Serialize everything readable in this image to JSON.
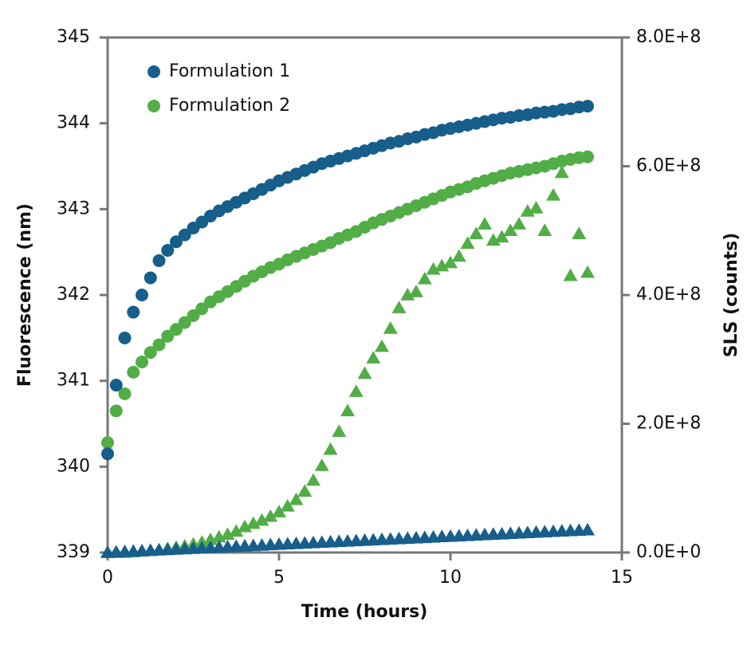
{
  "chart_data": {
    "type": "scatter",
    "x_label": "Time (hours)",
    "y_label": "Fluorescence (nm)",
    "y2_label": "SLS (counts)",
    "x": [
      0,
      0.25,
      0.5,
      0.75,
      1,
      1.25,
      1.5,
      1.75,
      2,
      2.25,
      2.5,
      2.75,
      3,
      3.25,
      3.5,
      3.75,
      4,
      4.25,
      4.5,
      4.75,
      5,
      5.25,
      5.5,
      5.75,
      6,
      6.25,
      6.5,
      6.75,
      7,
      7.25,
      7.5,
      7.75,
      8,
      8.25,
      8.5,
      8.75,
      9,
      9.25,
      9.5,
      9.75,
      10,
      10.25,
      10.5,
      10.75,
      11,
      11.25,
      11.5,
      11.75,
      12,
      12.25,
      12.5,
      12.75,
      13,
      13.25,
      13.5,
      13.75,
      14
    ],
    "xlim": [
      0,
      15
    ],
    "xticks": [
      0,
      5,
      10,
      15
    ],
    "ylim": [
      339,
      345
    ],
    "yticks": [
      339,
      340,
      341,
      342,
      343,
      344,
      345
    ],
    "y2lim": [
      0,
      800000000
    ],
    "y2ticks": [
      {
        "value": 0,
        "label": "0.0E+0"
      },
      {
        "value": 200000000,
        "label": "2.0E+8"
      },
      {
        "value": 400000000,
        "label": "4.0E+8"
      },
      {
        "value": 600000000,
        "label": "6.0E+8"
      },
      {
        "value": 800000000,
        "label": "8.0E+8"
      }
    ],
    "legend": "upper left",
    "series": [
      {
        "name": "Formulation 2",
        "color": "#52ad47",
        "marker": "circle",
        "values": [
          340.28,
          340.65,
          340.85,
          341.1,
          341.22,
          341.33,
          341.42,
          341.52,
          341.6,
          341.68,
          341.76,
          341.84,
          341.92,
          341.98,
          342.04,
          342.1,
          342.16,
          342.22,
          342.27,
          342.32,
          342.36,
          342.41,
          342.45,
          342.49,
          342.53,
          342.57,
          342.61,
          342.66,
          342.7,
          342.74,
          342.79,
          342.84,
          342.88,
          342.92,
          342.96,
          343.0,
          343.04,
          343.08,
          343.12,
          343.16,
          343.2,
          343.23,
          343.26,
          343.3,
          343.33,
          343.36,
          343.39,
          343.42,
          343.44,
          343.46,
          343.48,
          343.5,
          343.53,
          343.56,
          343.58,
          343.6,
          343.61
        ]
      },
      {
        "name": "Formulation 1",
        "color": "#175e8b",
        "marker": "circle",
        "values": [
          340.15,
          340.95,
          341.5,
          341.8,
          342.0,
          342.2,
          342.4,
          342.52,
          342.62,
          342.7,
          342.78,
          342.85,
          342.92,
          342.98,
          343.03,
          343.08,
          343.13,
          343.18,
          343.23,
          343.28,
          343.33,
          343.37,
          343.41,
          343.45,
          343.49,
          343.53,
          343.56,
          343.59,
          343.62,
          343.65,
          343.68,
          343.71,
          343.74,
          343.77,
          343.79,
          343.82,
          343.84,
          343.87,
          343.89,
          343.92,
          343.94,
          343.96,
          343.98,
          344.0,
          344.02,
          344.04,
          344.06,
          344.07,
          344.09,
          344.1,
          344.12,
          344.13,
          344.14,
          344.16,
          344.17,
          344.19,
          344.2
        ]
      },
      {
        "color": "#52ad47",
        "marker": "triangle",
        "axis": "y2",
        "values": [
          0,
          0,
          0,
          1000000.0,
          2000000.0,
          3000000.0,
          4000000.0,
          6000000.0,
          8000000.0,
          10000000.0,
          13000000.0,
          16000000.0,
          20000000.0,
          24000000.0,
          28000000.0,
          33000000.0,
          40000000.0,
          45000000.0,
          50000000.0,
          56000000.0,
          63000000.0,
          72000000.0,
          82000000.0,
          95000000.0,
          112000000.0,
          135000000.0,
          160000000.0,
          188000000.0,
          220000000.0,
          250000000.0,
          278000000.0,
          302000000.0,
          320000000.0,
          348000000.0,
          380000000.0,
          400000000.0,
          405000000.0,
          425000000.0,
          440000000.0,
          445000000.0,
          450000000.0,
          460000000.0,
          480000000.0,
          495000000.0,
          510000000.0,
          485000000.0,
          490000000.0,
          500000000.0,
          510000000.0,
          530000000.0,
          535000000.0,
          500000000.0,
          555000000.0,
          590000000.0,
          430000000.0,
          495000000.0,
          435000000.0
        ]
      },
      {
        "color": "#175e8b",
        "marker": "triangle",
        "axis": "y2",
        "values": [
          0,
          600000.0,
          1200000.0,
          1900000.0,
          2500000.0,
          3100000.0,
          3700000.0,
          4400000.0,
          5000000.0,
          5600000.0,
          6200000.0,
          6900000.0,
          7500000.0,
          8100000.0,
          8700000.0,
          9400000.0,
          10000000.0,
          10600000.0,
          11200000.0,
          11900000.0,
          12500000.0,
          13100000.0,
          13700000.0,
          14400000.0,
          15000000.0,
          15600000.0,
          16200000.0,
          16900000.0,
          17500000.0,
          18100000.0,
          18700000.0,
          19400000.0,
          20000000.0,
          20600000.0,
          21200000.0,
          21900000.0,
          22500000.0,
          23100000.0,
          23700000.0,
          24400000.0,
          25000000.0,
          25600000.0,
          26200000.0,
          26900000.0,
          27500000.0,
          28100000.0,
          28700000.0,
          29400000.0,
          30000000.0,
          30600000.0,
          31200000.0,
          31900000.0,
          32500000.0,
          33100000.0,
          33700000.0,
          34400000.0,
          35000000.0
        ]
      }
    ]
  }
}
